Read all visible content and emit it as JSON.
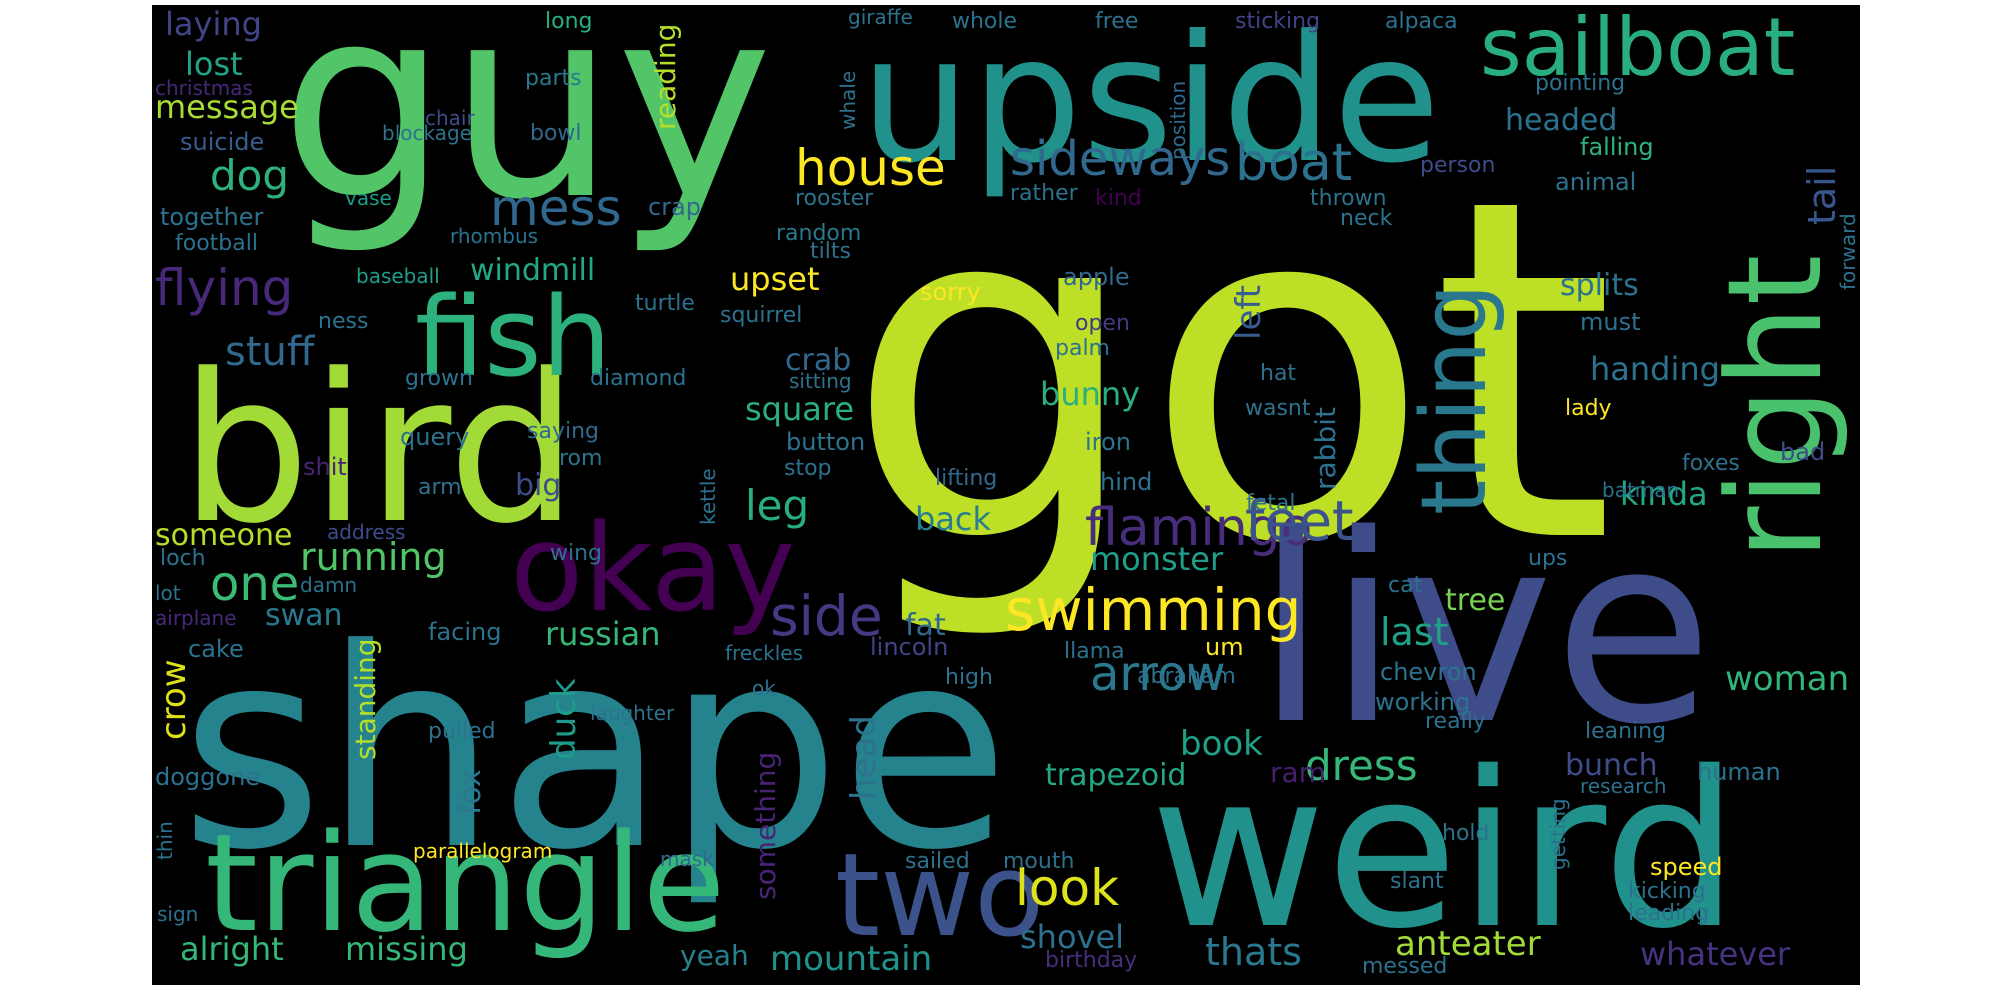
{
  "canvas": {
    "background": "#000000"
  },
  "words": [
    {
      "text": "got",
      "color": "#bddf26"
    },
    {
      "text": "guy",
      "color": "#52c569"
    },
    {
      "text": "shape",
      "color": "#25838e"
    },
    {
      "text": "live",
      "color": "#3e4c8a"
    },
    {
      "text": "weird",
      "color": "#21918c"
    },
    {
      "text": "bird",
      "color": "#a2da37"
    },
    {
      "text": "upside",
      "color": "#21918c"
    },
    {
      "text": "triangle",
      "color": "#35b779"
    },
    {
      "text": "okay",
      "color": "#440154"
    },
    {
      "text": "right",
      "color": "#4ac16d"
    },
    {
      "text": "fish",
      "color": "#2db27d"
    },
    {
      "text": "sailboat",
      "color": "#29af7f"
    },
    {
      "text": "two",
      "color": "#3b528b"
    },
    {
      "text": "thing",
      "color": "#2a788e"
    },
    {
      "text": "swimming",
      "color": "#fde725"
    },
    {
      "text": "sideways",
      "color": "#31688e"
    },
    {
      "text": "flamingo",
      "color": "#472d7b"
    },
    {
      "text": "boat",
      "color": "#2c728e"
    },
    {
      "text": "feet",
      "color": "#3b528b"
    },
    {
      "text": "house",
      "color": "#fde725"
    },
    {
      "text": "mess",
      "color": "#31688e"
    },
    {
      "text": "flying",
      "color": "#482878"
    },
    {
      "text": "side",
      "color": "#443983"
    },
    {
      "text": "look",
      "color": "#dde318"
    },
    {
      "text": "arrow",
      "color": "#2a788e"
    },
    {
      "text": "dog",
      "color": "#2db27d"
    },
    {
      "text": "one",
      "color": "#3bbb75"
    },
    {
      "text": "running",
      "color": "#52c569"
    },
    {
      "text": "dress",
      "color": "#35b779"
    },
    {
      "text": "leg",
      "color": "#28ae80"
    },
    {
      "text": "stuff",
      "color": "#31688e"
    },
    {
      "text": "tail",
      "color": "#39568c"
    },
    {
      "text": "monster",
      "color": "#1f9e89"
    },
    {
      "text": "last",
      "color": "#1fa188"
    },
    {
      "text": "thats",
      "color": "#2a788e"
    },
    {
      "text": "mountain",
      "color": "#21918c"
    },
    {
      "text": "russian",
      "color": "#35b779"
    },
    {
      "text": "crow",
      "color": "#dde318"
    },
    {
      "text": "left",
      "color": "#365d8d"
    },
    {
      "text": "back",
      "color": "#287d8e"
    },
    {
      "text": "book",
      "color": "#1fa188"
    },
    {
      "text": "shovel",
      "color": "#2c728e"
    },
    {
      "text": "alright",
      "color": "#35b779"
    },
    {
      "text": "missing",
      "color": "#35b779"
    },
    {
      "text": "woman",
      "color": "#31b57b"
    },
    {
      "text": "anteater",
      "color": "#a2da37"
    },
    {
      "text": "whatever",
      "color": "#46327e"
    },
    {
      "text": "bunch",
      "color": "#3e4c8a"
    },
    {
      "text": "kinda",
      "color": "#22a884"
    },
    {
      "text": "duck",
      "color": "#1e9b8a"
    },
    {
      "text": "head",
      "color": "#2c728e"
    },
    {
      "text": "square",
      "color": "#2ab07f"
    },
    {
      "text": "crab",
      "color": "#31688e"
    },
    {
      "text": "bunny",
      "color": "#2ab07f"
    },
    {
      "text": "upset",
      "color": "#fde725"
    },
    {
      "text": "handing",
      "color": "#2c728e"
    },
    {
      "text": "splits",
      "color": "#2c728e"
    },
    {
      "text": "windmill",
      "color": "#22a884"
    },
    {
      "text": "trapezoid",
      "color": "#22a884"
    },
    {
      "text": "laying",
      "color": "#414487"
    },
    {
      "text": "lost",
      "color": "#20a386"
    },
    {
      "text": "message",
      "color": "#a8db34"
    },
    {
      "text": "someone",
      "color": "#b5de2b"
    },
    {
      "text": "swan",
      "color": "#2a788e"
    },
    {
      "text": "standing",
      "color": "#b5de2b"
    },
    {
      "text": "reading",
      "color": "#b5de2b"
    },
    {
      "text": "fat",
      "color": "#31688e"
    },
    {
      "text": "something",
      "color": "#482475"
    },
    {
      "text": "fox",
      "color": "#2a788e"
    },
    {
      "text": "rabbit",
      "color": "#2c728e"
    },
    {
      "text": "tree",
      "color": "#7ad151"
    },
    {
      "text": "headed",
      "color": "#2c728e"
    },
    {
      "text": "ram",
      "color": "#481f70"
    },
    {
      "text": "yeah",
      "color": "#26818e"
    },
    {
      "text": "big",
      "color": "#3e4c8a"
    },
    {
      "text": "chevron",
      "color": "#2c728e"
    },
    {
      "text": "working",
      "color": "#2c728e"
    },
    {
      "text": "speed",
      "color": "#fde725"
    },
    {
      "text": "giraffe",
      "color": "#2c728e"
    },
    {
      "text": "whole",
      "color": "#2c728e"
    },
    {
      "text": "free",
      "color": "#2c728e"
    },
    {
      "text": "sticking",
      "color": "#414487"
    },
    {
      "text": "alpaca",
      "color": "#2c728e"
    },
    {
      "text": "long",
      "color": "#29af7f"
    },
    {
      "text": "parts",
      "color": "#2a788e"
    },
    {
      "text": "christmas",
      "color": "#482878"
    },
    {
      "text": "whale",
      "color": "#2c728e"
    },
    {
      "text": "chair",
      "color": "#3e4c8a"
    },
    {
      "text": "position",
      "color": "#31688e"
    },
    {
      "text": "pointing",
      "color": "#2c728e"
    },
    {
      "text": "blockage",
      "color": "#2c728e"
    },
    {
      "text": "bowl",
      "color": "#31688e"
    },
    {
      "text": "suicide",
      "color": "#365d8d"
    },
    {
      "text": "person",
      "color": "#3e4c8a"
    },
    {
      "text": "falling",
      "color": "#2db27d"
    },
    {
      "text": "rooster",
      "color": "#2c728e"
    },
    {
      "text": "rather",
      "color": "#2c728e"
    },
    {
      "text": "kind",
      "color": "#440154"
    },
    {
      "text": "animal",
      "color": "#2c728e"
    },
    {
      "text": "vase",
      "color": "#1e9b8a"
    },
    {
      "text": "crap",
      "color": "#31688e"
    },
    {
      "text": "thrown",
      "color": "#2c728e"
    },
    {
      "text": "together",
      "color": "#2c728e"
    },
    {
      "text": "random",
      "color": "#2a788e"
    },
    {
      "text": "neck",
      "color": "#2c728e"
    },
    {
      "text": "football",
      "color": "#2c728e"
    },
    {
      "text": "rhombus",
      "color": "#2c728e"
    },
    {
      "text": "tilts",
      "color": "#2c728e"
    },
    {
      "text": "forward",
      "color": "#2c728e"
    },
    {
      "text": "baseball",
      "color": "#1f9e89"
    },
    {
      "text": "apple",
      "color": "#31688e"
    },
    {
      "text": "sorry",
      "color": "#fde725"
    },
    {
      "text": "turtle",
      "color": "#2c728e"
    },
    {
      "text": "squirrel",
      "color": "#2c728e"
    },
    {
      "text": "ness",
      "color": "#2c728e"
    },
    {
      "text": "open",
      "color": "#443983"
    },
    {
      "text": "must",
      "color": "#2c728e"
    },
    {
      "text": "palm",
      "color": "#2c728e"
    },
    {
      "text": "grown",
      "color": "#2c728e"
    },
    {
      "text": "diamond",
      "color": "#2c728e"
    },
    {
      "text": "sitting",
      "color": "#2c728e"
    },
    {
      "text": "hat",
      "color": "#2c728e"
    },
    {
      "text": "wasnt",
      "color": "#2c728e"
    },
    {
      "text": "lady",
      "color": "#fde725"
    },
    {
      "text": "query",
      "color": "#2c728e"
    },
    {
      "text": "saying",
      "color": "#31688e"
    },
    {
      "text": "button",
      "color": "#2c728e"
    },
    {
      "text": "iron",
      "color": "#2c728e"
    },
    {
      "text": "bad",
      "color": "#3e4c8a"
    },
    {
      "text": "shit",
      "color": "#482475"
    },
    {
      "text": "rom",
      "color": "#2c728e"
    },
    {
      "text": "stop",
      "color": "#2c728e"
    },
    {
      "text": "hind",
      "color": "#2c728e"
    },
    {
      "text": "foxes",
      "color": "#2c728e"
    },
    {
      "text": "arm",
      "color": "#2c728e"
    },
    {
      "text": "lifting",
      "color": "#31688e"
    },
    {
      "text": "kettle",
      "color": "#2c728e"
    },
    {
      "text": "batman",
      "color": "#2c728e"
    },
    {
      "text": "fetal",
      "color": "#2c728e"
    },
    {
      "text": "address",
      "color": "#3e4c8a"
    },
    {
      "text": "loch",
      "color": "#2c728e"
    },
    {
      "text": "wing",
      "color": "#2c728e"
    },
    {
      "text": "ups",
      "color": "#2c728e"
    },
    {
      "text": "lot",
      "color": "#2c728e"
    },
    {
      "text": "damn",
      "color": "#2c728e"
    },
    {
      "text": "cat",
      "color": "#2c728e"
    },
    {
      "text": "airplane",
      "color": "#482878"
    },
    {
      "text": "cake",
      "color": "#2c728e"
    },
    {
      "text": "facing",
      "color": "#2c728e"
    },
    {
      "text": "lincoln",
      "color": "#414487"
    },
    {
      "text": "um",
      "color": "#fde725"
    },
    {
      "text": "freckles",
      "color": "#2c728e"
    },
    {
      "text": "llama",
      "color": "#2c728e"
    },
    {
      "text": "high",
      "color": "#2c728e"
    },
    {
      "text": "abraham",
      "color": "#2c728e"
    },
    {
      "text": "ok",
      "color": "#2c728e"
    },
    {
      "text": "laughter",
      "color": "#2c728e"
    },
    {
      "text": "really",
      "color": "#2c728e"
    },
    {
      "text": "pulled",
      "color": "#2c728e"
    },
    {
      "text": "leaning",
      "color": "#2c728e"
    },
    {
      "text": "doggone",
      "color": "#2c728e"
    },
    {
      "text": "getting",
      "color": "#2c728e"
    },
    {
      "text": "research",
      "color": "#2c728e"
    },
    {
      "text": "human",
      "color": "#2c728e"
    },
    {
      "text": "thin",
      "color": "#2c728e"
    },
    {
      "text": "parallelogram",
      "color": "#fde725"
    },
    {
      "text": "mask",
      "color": "#31688e"
    },
    {
      "text": "hold",
      "color": "#2c728e"
    },
    {
      "text": "sailed",
      "color": "#2c728e"
    },
    {
      "text": "mouth",
      "color": "#2c728e"
    },
    {
      "text": "slant",
      "color": "#2c728e"
    },
    {
      "text": "kicking",
      "color": "#2c728e"
    },
    {
      "text": "sign",
      "color": "#2c728e"
    },
    {
      "text": "leading",
      "color": "#2c728e"
    },
    {
      "text": "birthday",
      "color": "#472d7b"
    },
    {
      "text": "messed",
      "color": "#2c728e"
    }
  ]
}
